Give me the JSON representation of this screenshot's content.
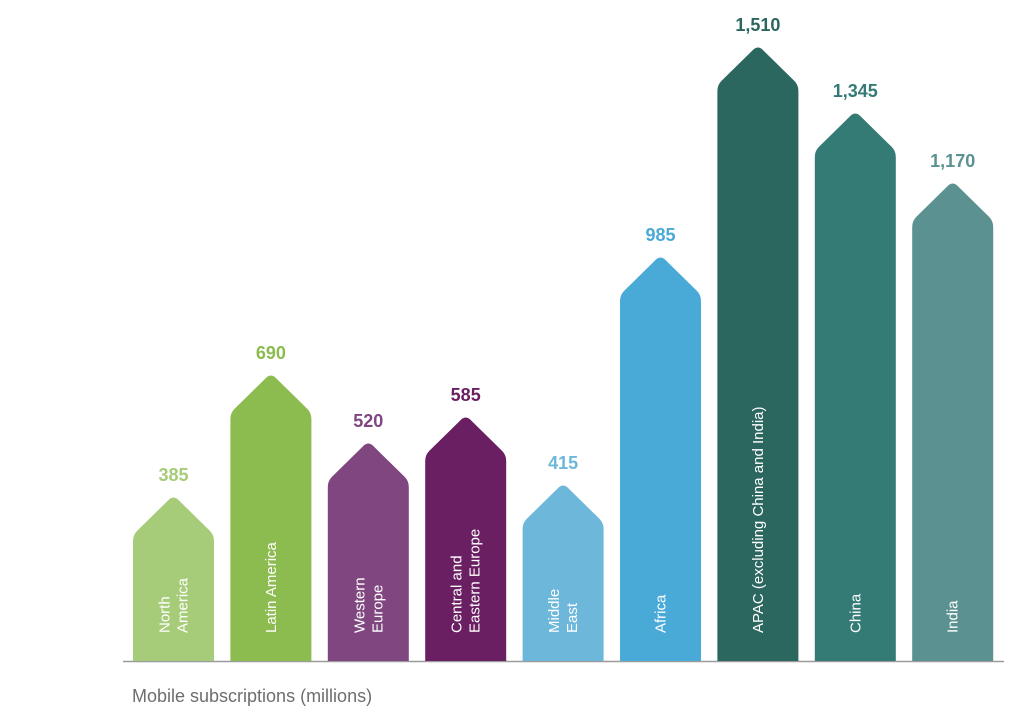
{
  "chart_data": {
    "type": "bar",
    "xlabel": "Mobile subscriptions (millions)",
    "categories": [
      "North America",
      "Latin America",
      "Western Europe",
      "Central and Eastern Europe",
      "Middle East",
      "Africa",
      "APAC (excluding China and India)",
      "China",
      "India"
    ],
    "category_lines": [
      [
        "North",
        "America"
      ],
      [
        "Latin America"
      ],
      [
        "Western",
        "Europe"
      ],
      [
        "Central and",
        "Eastern Europe"
      ],
      [
        "Middle",
        "East"
      ],
      [
        "Africa"
      ],
      [
        "APAC (excluding China and India)"
      ],
      [
        "China"
      ],
      [
        "India"
      ]
    ],
    "values": [
      385,
      690,
      520,
      585,
      415,
      985,
      1510,
      1345,
      1170
    ],
    "value_labels": [
      "385",
      "690",
      "520",
      "585",
      "415",
      "985",
      "1,510",
      "1,345",
      "1,170"
    ],
    "colors": [
      "#a7cc79",
      "#8cbc4f",
      "#7f4680",
      "#6a1f62",
      "#6db7db",
      "#4aaad7",
      "#2b665f",
      "#347a75",
      "#5b9190"
    ],
    "label_colors": [
      "#a7cc79",
      "#8cbc4f",
      "#7f4680",
      "#6a1f62",
      "#6db7db",
      "#4aaad7",
      "#2b665f",
      "#347a75",
      "#5b9190"
    ],
    "ylim": [
      0,
      1600
    ],
    "grid": false,
    "bar_shape": "arrow"
  }
}
